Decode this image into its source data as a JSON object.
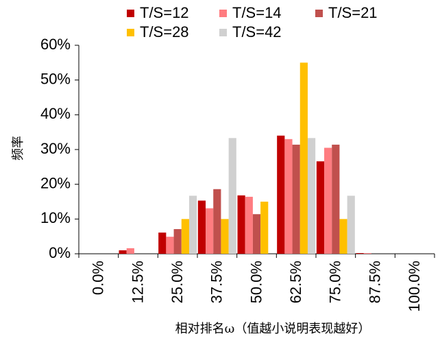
{
  "chart_data": {
    "type": "bar",
    "title": "",
    "ylabel": "频率",
    "xlabel": "相对排名ω（值越小说明表现越好）",
    "ylim": [
      0,
      60
    ],
    "y_ticks": [
      0,
      10,
      20,
      30,
      40,
      50,
      60
    ],
    "y_tick_labels": [
      "0%",
      "10%",
      "20%",
      "30%",
      "40%",
      "50%",
      "60%"
    ],
    "categories": [
      "0.0%",
      "12.5%",
      "25.0%",
      "37.5%",
      "50.0%",
      "62.5%",
      "75.0%",
      "87.5%",
      "100.0%"
    ],
    "grid": false,
    "legend_position": "top",
    "series": [
      {
        "name": "T/S=12",
        "color": "#c00000",
        "values": [
          0,
          1.0,
          6.1,
          15.3,
          16.8,
          34.0,
          26.6,
          0.2,
          0
        ]
      },
      {
        "name": "T/S=14",
        "color": "#ff7c80",
        "values": [
          0,
          1.6,
          4.9,
          13.1,
          16.4,
          33.0,
          30.5,
          0.2,
          0
        ]
      },
      {
        "name": "T/S=21",
        "color": "#c0504d",
        "values": [
          0,
          0,
          7.1,
          18.6,
          11.4,
          31.4,
          31.4,
          0,
          0
        ]
      },
      {
        "name": "T/S=28",
        "color": "#ffc000",
        "values": [
          0,
          0,
          10.0,
          10.0,
          15.0,
          55.0,
          10.0,
          0,
          0
        ]
      },
      {
        "name": "T/S=42",
        "color": "#d0d0d0",
        "values": [
          0,
          0,
          16.7,
          33.3,
          0,
          33.3,
          16.7,
          0,
          0
        ]
      }
    ]
  }
}
